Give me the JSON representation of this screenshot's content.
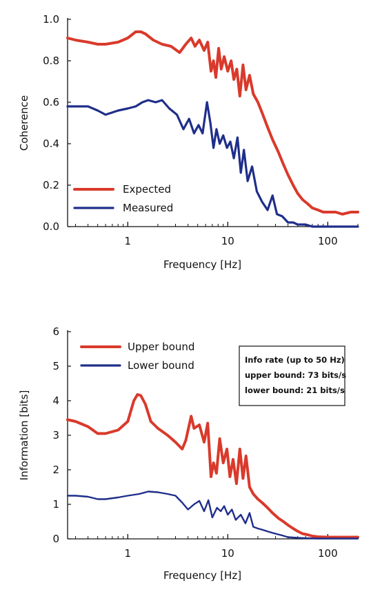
{
  "chart_data": [
    {
      "type": "line",
      "xlabel": "Frequency [Hz]",
      "ylabel": "Coherence",
      "xscale": "log",
      "xlim": [
        0.25,
        200
      ],
      "ylim": [
        0,
        1.0
      ],
      "x_ticks": [
        "1",
        "10",
        "100"
      ],
      "y_ticks": [
        "0.0",
        "0.2",
        "0.4",
        "0.6",
        "0.8",
        "1.0"
      ],
      "legend_position": "bottom-left",
      "series": [
        {
          "name": "Expected",
          "color": "#d93a2b",
          "x": [
            0.25,
            0.3,
            0.4,
            0.5,
            0.6,
            0.8,
            1.0,
            1.2,
            1.35,
            1.5,
            1.8,
            2.2,
            2.7,
            3.3,
            3.8,
            4.3,
            4.7,
            5.2,
            5.8,
            6.3,
            6.8,
            7.2,
            7.6,
            8.1,
            8.6,
            9.2,
            10,
            10.8,
            11.5,
            12.3,
            13.2,
            14.2,
            15.2,
            16.5,
            18,
            20,
            22,
            25,
            28,
            32,
            36,
            40,
            45,
            50,
            56,
            63,
            70,
            80,
            90,
            100,
            120,
            140,
            170,
            200
          ],
          "y": [
            0.91,
            0.9,
            0.89,
            0.88,
            0.88,
            0.89,
            0.91,
            0.94,
            0.94,
            0.93,
            0.9,
            0.88,
            0.87,
            0.84,
            0.88,
            0.91,
            0.87,
            0.9,
            0.85,
            0.89,
            0.75,
            0.8,
            0.72,
            0.86,
            0.76,
            0.82,
            0.75,
            0.8,
            0.71,
            0.76,
            0.63,
            0.78,
            0.66,
            0.73,
            0.64,
            0.6,
            0.55,
            0.48,
            0.42,
            0.36,
            0.3,
            0.25,
            0.2,
            0.16,
            0.13,
            0.11,
            0.09,
            0.08,
            0.07,
            0.07,
            0.07,
            0.06,
            0.07,
            0.07
          ]
        },
        {
          "name": "Measured",
          "color": "#1f2e8a",
          "x": [
            0.25,
            0.3,
            0.4,
            0.5,
            0.6,
            0.8,
            1.0,
            1.2,
            1.4,
            1.6,
            1.9,
            2.2,
            2.6,
            3.1,
            3.6,
            4.1,
            4.6,
            5.1,
            5.6,
            6.2,
            6.7,
            7.2,
            7.7,
            8.3,
            9.0,
            9.8,
            10.6,
            11.5,
            12.5,
            13.5,
            14.5,
            15.8,
            17.5,
            19.5,
            22,
            25,
            28,
            31,
            35,
            40,
            45,
            50,
            60,
            70,
            80,
            100,
            130,
            160,
            200
          ],
          "y": [
            0.58,
            0.58,
            0.58,
            0.56,
            0.54,
            0.56,
            0.57,
            0.58,
            0.6,
            0.61,
            0.6,
            0.61,
            0.57,
            0.54,
            0.47,
            0.52,
            0.45,
            0.49,
            0.45,
            0.6,
            0.5,
            0.38,
            0.47,
            0.4,
            0.44,
            0.38,
            0.41,
            0.33,
            0.43,
            0.26,
            0.37,
            0.22,
            0.29,
            0.17,
            0.12,
            0.08,
            0.15,
            0.06,
            0.05,
            0.02,
            0.02,
            0.01,
            0.01,
            0.0,
            0.0,
            0.0,
            0.0,
            0.0,
            0.0
          ]
        }
      ]
    },
    {
      "type": "line",
      "xlabel": "Frequency [Hz]",
      "ylabel": "Information [bits]",
      "xscale": "log",
      "xlim": [
        0.25,
        200
      ],
      "ylim": [
        0,
        6
      ],
      "x_ticks": [
        "1",
        "10",
        "100"
      ],
      "y_ticks": [
        "0",
        "1",
        "2",
        "3",
        "4",
        "5",
        "6"
      ],
      "legend_position": "top-left",
      "annotation": {
        "lines": [
          "Info rate (up to 50 Hz)",
          "upper bound: 73 bits/s",
          "lower bound: 21 bits/s"
        ]
      },
      "series": [
        {
          "name": "Upper bound",
          "color": "#d93a2b",
          "x": [
            0.25,
            0.3,
            0.4,
            0.5,
            0.6,
            0.8,
            1.0,
            1.15,
            1.25,
            1.35,
            1.5,
            1.7,
            2.0,
            2.5,
            3.0,
            3.5,
            3.8,
            4.3,
            4.6,
            5.2,
            5.8,
            6.3,
            6.8,
            7.2,
            7.7,
            8.3,
            9.0,
            9.8,
            10.5,
            11.3,
            12.2,
            13.2,
            14.2,
            15.2,
            16.5,
            18,
            20,
            22,
            25,
            28,
            32,
            36,
            40,
            45,
            50,
            56,
            63,
            70,
            80,
            100,
            130,
            160,
            200
          ],
          "y": [
            3.45,
            3.4,
            3.25,
            3.05,
            3.05,
            3.15,
            3.4,
            4.0,
            4.18,
            4.15,
            3.9,
            3.4,
            3.2,
            3.0,
            2.8,
            2.6,
            2.85,
            3.55,
            3.2,
            3.3,
            2.8,
            3.35,
            1.8,
            2.2,
            1.9,
            2.9,
            2.2,
            2.6,
            1.8,
            2.3,
            1.6,
            2.6,
            1.75,
            2.4,
            1.5,
            1.3,
            1.15,
            1.05,
            0.9,
            0.75,
            0.6,
            0.5,
            0.4,
            0.3,
            0.22,
            0.15,
            0.12,
            0.08,
            0.06,
            0.05,
            0.05,
            0.05,
            0.05
          ]
        },
        {
          "name": "Lower bound",
          "color": "#1f2e8a",
          "x": [
            0.25,
            0.3,
            0.4,
            0.5,
            0.6,
            0.8,
            1.0,
            1.3,
            1.6,
            2.0,
            2.5,
            3.0,
            3.5,
            4.0,
            4.6,
            5.2,
            5.8,
            6.4,
            7.0,
            7.8,
            8.5,
            9.2,
            10,
            11,
            12,
            13.5,
            15,
            16.5,
            18,
            20,
            23,
            26,
            30,
            35,
            40,
            50,
            60,
            80,
            100,
            140,
            200
          ],
          "y": [
            1.25,
            1.25,
            1.22,
            1.15,
            1.15,
            1.2,
            1.25,
            1.3,
            1.37,
            1.35,
            1.3,
            1.25,
            1.05,
            0.85,
            1.0,
            1.1,
            0.8,
            1.12,
            0.62,
            0.9,
            0.8,
            0.95,
            0.7,
            0.85,
            0.55,
            0.7,
            0.45,
            0.75,
            0.35,
            0.3,
            0.25,
            0.2,
            0.15,
            0.1,
            0.05,
            0.03,
            0.02,
            0.01,
            0.01,
            0.01,
            0.01
          ]
        }
      ]
    }
  ]
}
